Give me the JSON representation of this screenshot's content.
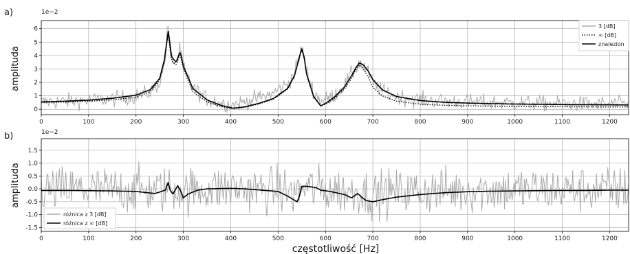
{
  "chart_data": [
    {
      "type": "line",
      "panel_label": "a)",
      "ylabel": "amplituda",
      "xlabel": "",
      "offset_text": "1e−2",
      "xlim": [
        0,
        1240
      ],
      "ylim": [
        -0.4,
        6.6
      ],
      "xticks": [
        0,
        100,
        200,
        300,
        400,
        500,
        600,
        700,
        800,
        900,
        1000,
        1100,
        1200
      ],
      "yticks": [
        0,
        1,
        2,
        3,
        4,
        5,
        6
      ],
      "grid": true,
      "legend_position": "top-right",
      "series": [
        {
          "name": "3 [dB]",
          "style": "noise",
          "color": "#aaaaaa",
          "x": [
            0,
            50,
            100,
            150,
            200,
            230,
            250,
            260,
            268,
            275,
            285,
            293,
            300,
            320,
            350,
            380,
            405,
            430,
            460,
            490,
            520,
            535,
            545,
            550,
            555,
            560,
            575,
            590,
            605,
            620,
            640,
            655,
            665,
            672,
            680,
            690,
            700,
            720,
            750,
            800,
            850,
            900,
            950,
            1000,
            1050,
            1100,
            1150,
            1200,
            1240
          ],
          "y": [
            0.55,
            0.6,
            0.66,
            0.76,
            0.96,
            1.3,
            2.0,
            3.4,
            6.3,
            3.7,
            3.5,
            4.5,
            3.1,
            1.6,
            0.75,
            0.45,
            0.35,
            0.55,
            0.85,
            1.2,
            1.9,
            2.7,
            3.9,
            4.6,
            3.9,
            2.9,
            1.3,
            0.65,
            0.75,
            1.1,
            1.8,
            2.6,
            3.1,
            3.5,
            3.2,
            2.7,
            2.0,
            1.35,
            0.95,
            0.7,
            0.6,
            0.55,
            0.5,
            0.48,
            0.45,
            0.42,
            0.4,
            0.38,
            0.37
          ]
        },
        {
          "name": "∞ [dB]",
          "style": "dotted",
          "color": "#111111",
          "x": [
            0,
            50,
            100,
            150,
            200,
            230,
            250,
            260,
            268,
            275,
            285,
            293,
            300,
            320,
            350,
            380,
            405,
            430,
            460,
            490,
            520,
            535,
            545,
            550,
            555,
            560,
            575,
            590,
            605,
            620,
            640,
            655,
            665,
            672,
            680,
            690,
            700,
            720,
            750,
            800,
            850,
            900,
            950,
            1000,
            1050,
            1100,
            1150,
            1200,
            1240
          ],
          "y": [
            0.5,
            0.54,
            0.6,
            0.7,
            0.9,
            1.3,
            2.2,
            3.6,
            5.6,
            3.6,
            3.3,
            4.1,
            3.0,
            1.3,
            0.55,
            0.2,
            0.05,
            0.15,
            0.4,
            0.75,
            1.5,
            2.5,
            3.9,
            4.4,
            3.9,
            2.6,
            0.9,
            0.25,
            0.45,
            0.85,
            1.5,
            2.3,
            3.0,
            3.3,
            3.0,
            2.4,
            1.65,
            1.0,
            0.6,
            0.38,
            0.3,
            0.26,
            0.23,
            0.21,
            0.2,
            0.19,
            0.18,
            0.17,
            0.17
          ]
        },
        {
          "name": "znalezion",
          "style": "solid",
          "color": "#000000",
          "x": [
            0,
            50,
            100,
            150,
            200,
            230,
            250,
            260,
            268,
            275,
            285,
            293,
            300,
            320,
            350,
            380,
            405,
            430,
            460,
            490,
            520,
            535,
            545,
            550,
            555,
            560,
            575,
            590,
            605,
            620,
            640,
            655,
            665,
            672,
            680,
            690,
            700,
            720,
            750,
            800,
            850,
            900,
            950,
            1000,
            1050,
            1100,
            1150,
            1200,
            1240
          ],
          "y": [
            0.55,
            0.6,
            0.68,
            0.82,
            1.05,
            1.45,
            2.3,
            3.7,
            5.8,
            3.9,
            3.5,
            4.3,
            3.2,
            1.55,
            0.7,
            0.28,
            0.08,
            0.18,
            0.45,
            0.8,
            1.55,
            2.55,
            3.9,
            4.5,
            3.9,
            2.65,
            0.95,
            0.25,
            0.55,
            0.95,
            1.65,
            2.5,
            3.15,
            3.45,
            3.3,
            2.85,
            2.2,
            1.45,
            0.95,
            0.65,
            0.52,
            0.46,
            0.42,
            0.39,
            0.37,
            0.35,
            0.34,
            0.33,
            0.32
          ]
        }
      ]
    },
    {
      "type": "line",
      "panel_label": "b)",
      "ylabel": "amplituda",
      "xlabel": "częstotliwość [Hz]",
      "offset_text": "1e−2",
      "xlim": [
        0,
        1240
      ],
      "ylim": [
        -1.65,
        1.95
      ],
      "xticks": [
        0,
        100,
        200,
        300,
        400,
        500,
        600,
        700,
        800,
        900,
        1000,
        1100,
        1200
      ],
      "yticks": [
        -1.5,
        -1.0,
        -0.5,
        0.0,
        0.5,
        1.0,
        1.5
      ],
      "grid": true,
      "legend_position": "bottom-left",
      "series": [
        {
          "name": "różnica z 3 [dB]",
          "style": "noise",
          "color": "#aaaaaa",
          "x": [
            0,
            100,
            200,
            300,
            400,
            500,
            600,
            700,
            800,
            900,
            1000,
            1100,
            1200,
            1240
          ],
          "y": [
            0,
            0,
            0,
            0,
            0,
            0,
            0,
            0,
            0,
            0,
            0,
            0,
            0,
            0
          ]
        },
        {
          "name": "różnica z ∞ [dB]",
          "style": "solid",
          "color": "#000000",
          "x": [
            0,
            50,
            100,
            150,
            200,
            240,
            262,
            268,
            272,
            278,
            288,
            295,
            300,
            310,
            330,
            350,
            400,
            430,
            500,
            520,
            540,
            545,
            550,
            560,
            580,
            590,
            610,
            640,
            655,
            668,
            675,
            685,
            700,
            720,
            750,
            800,
            850,
            900,
            950,
            1000,
            1050,
            1100,
            1150,
            1200,
            1240
          ],
          "y": [
            -0.06,
            -0.06,
            -0.07,
            -0.08,
            -0.1,
            -0.18,
            -0.05,
            0.25,
            -0.05,
            -0.2,
            0.12,
            -0.1,
            -0.35,
            -0.2,
            -0.05,
            0.0,
            0.02,
            0.0,
            -0.1,
            -0.28,
            -0.5,
            -0.3,
            0.1,
            0.1,
            0.05,
            -0.05,
            -0.1,
            -0.22,
            -0.35,
            -0.18,
            -0.3,
            -0.45,
            -0.5,
            -0.42,
            -0.32,
            -0.22,
            -0.15,
            -0.11,
            -0.09,
            -0.08,
            -0.07,
            -0.06,
            -0.06,
            -0.05,
            -0.05
          ]
        }
      ]
    }
  ]
}
